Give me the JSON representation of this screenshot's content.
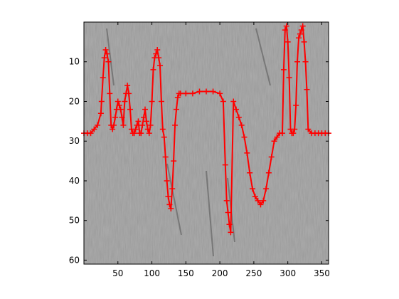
{
  "chart_data": {
    "type": "line",
    "title": "",
    "xlabel": "",
    "ylabel": "",
    "xlim": [
      0,
      360
    ],
    "ylim": [
      61,
      0
    ],
    "y_axis_direction": "reversed",
    "grid": false,
    "legend": "none",
    "background": "grayscale image",
    "x_ticks": [
      50,
      100,
      150,
      200,
      250,
      300,
      350
    ],
    "y_ticks": [
      10,
      20,
      30,
      40,
      50,
      60
    ],
    "series": [
      {
        "color": "#ff0000",
        "marker": "+",
        "x": [
          0,
          5,
          10,
          15,
          20,
          25,
          26,
          28,
          30,
          32,
          34,
          36,
          38,
          40,
          42,
          44,
          46,
          48,
          50,
          52,
          54,
          56,
          58,
          60,
          62,
          64,
          66,
          68,
          70,
          72,
          74,
          76,
          78,
          80,
          82,
          84,
          86,
          88,
          90,
          92,
          94,
          96,
          98,
          100,
          102,
          104,
          106,
          108,
          110,
          112,
          114,
          116,
          118,
          120,
          122,
          124,
          126,
          128,
          130,
          132,
          134,
          136,
          138,
          140,
          142,
          150,
          160,
          170,
          180,
          190,
          200,
          205,
          208,
          210,
          212,
          214,
          216,
          220,
          224,
          228,
          232,
          236,
          240,
          244,
          248,
          252,
          256,
          260,
          264,
          268,
          272,
          276,
          280,
          284,
          288,
          292,
          294,
          296,
          298,
          300,
          302,
          304,
          306,
          308,
          310,
          312,
          314,
          316,
          318,
          320,
          322,
          324,
          326,
          328,
          330,
          335,
          340,
          345,
          350,
          355,
          360
        ],
        "y": [
          28,
          28,
          28,
          27,
          26,
          23,
          20,
          14,
          9,
          7,
          8,
          10,
          18,
          26,
          27,
          26,
          24,
          22,
          20,
          21,
          22,
          24,
          26,
          20,
          18,
          16,
          18,
          22,
          27,
          28,
          28,
          27,
          26,
          25,
          28,
          28,
          26,
          24,
          22,
          25,
          27,
          28,
          26,
          20,
          12,
          9,
          8,
          7,
          9,
          11,
          20,
          27,
          29,
          34,
          40,
          44,
          46,
          47,
          42,
          35,
          26,
          22,
          19,
          18,
          18,
          18,
          18,
          17.5,
          17.5,
          17.5,
          18,
          20,
          36,
          45,
          48,
          51,
          53,
          20,
          22,
          24,
          26,
          29,
          33,
          38,
          42,
          44,
          45,
          46,
          45,
          42,
          38,
          34,
          30,
          29,
          28,
          28,
          12,
          2,
          1,
          5,
          14,
          27,
          28,
          28,
          27,
          21,
          10,
          4,
          3,
          2,
          1,
          5,
          10,
          17,
          27,
          28,
          28,
          28,
          28,
          28,
          28
        ]
      }
    ]
  }
}
